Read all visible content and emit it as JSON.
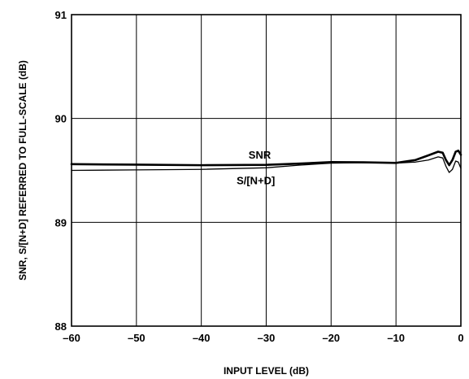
{
  "chart_data": {
    "type": "line",
    "xlabel": "INPUT LEVEL (dB)",
    "ylabel": "SNR, S/[N+D] REFERRED TO FULL-SCALE (dB)",
    "xlim": [
      -60,
      0
    ],
    "ylim": [
      88,
      91
    ],
    "x_ticks": [
      -60,
      -50,
      -40,
      -30,
      -20,
      -10,
      0
    ],
    "x_tick_labels": [
      "–60",
      "–50",
      "–40",
      "–30",
      "–20",
      "–10",
      "0"
    ],
    "y_ticks": [
      88,
      89,
      90,
      91
    ],
    "y_tick_labels": [
      "88",
      "89",
      "90",
      "91"
    ],
    "grid": true,
    "series": [
      {
        "name": "SNR",
        "line": "thick",
        "x": [
          -60,
          -50,
          -40,
          -30,
          -25,
          -20,
          -15,
          -10,
          -7,
          -5,
          -3.5,
          -2.8,
          -2.3,
          -1.8,
          -1.3,
          -0.8,
          -0.4,
          0
        ],
        "y": [
          89.56,
          89.555,
          89.55,
          89.553,
          89.565,
          89.58,
          89.578,
          89.572,
          89.6,
          89.645,
          89.68,
          89.67,
          89.6,
          89.55,
          89.6,
          89.68,
          89.69,
          89.65
        ]
      },
      {
        "name": "S/[N+D]",
        "line": "thin",
        "x": [
          -60,
          -50,
          -40,
          -30,
          -25,
          -20,
          -15,
          -10,
          -7,
          -5,
          -3.5,
          -2.8,
          -2.3,
          -1.8,
          -1.3,
          -0.8,
          -0.4,
          0
        ],
        "y": [
          89.5,
          89.505,
          89.51,
          89.525,
          89.55,
          89.57,
          89.575,
          89.57,
          89.58,
          89.6,
          89.63,
          89.62,
          89.54,
          89.48,
          89.51,
          89.59,
          89.58,
          89.52
        ]
      }
    ]
  }
}
